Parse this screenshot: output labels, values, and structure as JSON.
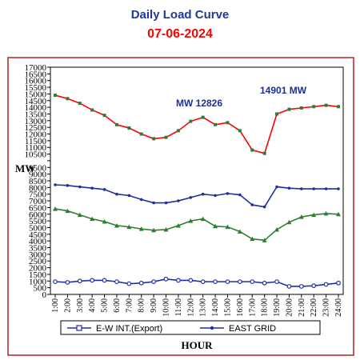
{
  "chart_data": {
    "type": "line",
    "title": "Daily Load Curve",
    "subtitle": "07-06-2024",
    "xlabel": "HOUR",
    "ylabel": "MW",
    "ylim": [
      0,
      17000
    ],
    "yticks": [
      "0",
      "500",
      "1000",
      "1500",
      "2000",
      "2500",
      "3000",
      "3500",
      "4000",
      "4500",
      "5000",
      "5500",
      "6000",
      "6500",
      "7000",
      "7500",
      "8000",
      "8500",
      "9000",
      "9500",
      "10000",
      "10500",
      "11000",
      "11500",
      "12000",
      "12500",
      "13000",
      "13500",
      "14000",
      "14500",
      "15000",
      "15500",
      "16000",
      "16500",
      "17000"
    ],
    "categories": [
      "1:00",
      "2:00",
      "3:00",
      "4:00",
      "5:00",
      "6:00",
      "7:00",
      "8:00",
      "9:00",
      "10:00",
      "11:00",
      "12:00",
      "13:00",
      "14:00",
      "15:00",
      "16:00",
      "17:00",
      "18:00",
      "19:00",
      "20:00",
      "21:00",
      "22:00",
      "23:00",
      "24:00"
    ],
    "series": [
      {
        "name": "",
        "color": "#ff0000",
        "marker": "#2e7d32",
        "values": [
          14901,
          14650,
          14300,
          13800,
          13400,
          12700,
          12450,
          12000,
          11650,
          11750,
          12250,
          12950,
          13250,
          12700,
          12850,
          12250,
          10800,
          10550,
          13500,
          13850,
          13950,
          14050,
          14150,
          14050
        ]
      },
      {
        "name": "EAST GRID",
        "color": "#1f2f9f",
        "marker": "#1f2f9f",
        "values": [
          8200,
          8150,
          8050,
          7950,
          7850,
          7500,
          7400,
          7100,
          6850,
          6850,
          7000,
          7250,
          7500,
          7400,
          7550,
          7450,
          6700,
          6550,
          8050,
          7950,
          7900,
          7900,
          7900,
          7900
        ]
      },
      {
        "name": "",
        "color": "#2e7d32",
        "marker": "#2e7d32",
        "values": [
          6400,
          6250,
          5950,
          5650,
          5450,
          5150,
          5050,
          4900,
          4800,
          4850,
          5150,
          5500,
          5650,
          5100,
          5050,
          4700,
          4150,
          4050,
          4850,
          5400,
          5800,
          5950,
          6050,
          6000
        ]
      },
      {
        "name": "E-W INT.(Export)",
        "color": "#1f2f9f",
        "marker": "#1f2f9f",
        "values": [
          950,
          900,
          1000,
          1050,
          1050,
          950,
          800,
          850,
          950,
          1150,
          1050,
          1050,
          950,
          950,
          950,
          950,
          950,
          850,
          950,
          600,
          600,
          650,
          750,
          850
        ]
      }
    ],
    "annotations": [
      "MW 12826",
      "14901 MW"
    ],
    "legend_position": "bottom",
    "grid": false
  }
}
